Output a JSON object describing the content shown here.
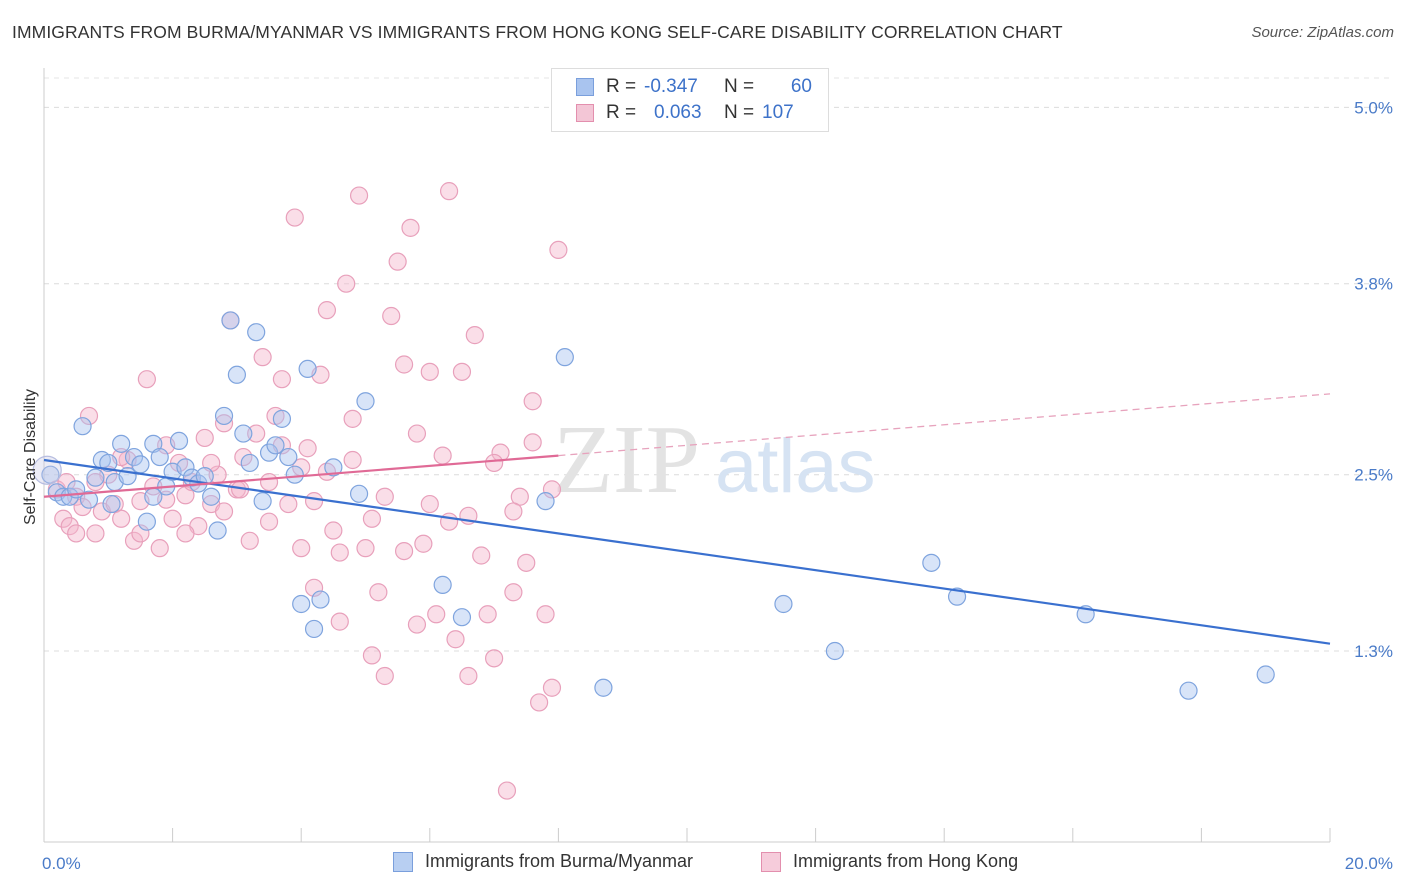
{
  "title": "IMMIGRANTS FROM BURMA/MYANMAR VS IMMIGRANTS FROM HONG KONG SELF-CARE DISABILITY CORRELATION CHART",
  "source": "Source: ZipAtlas.com",
  "watermark": {
    "zip": "ZIP",
    "atlas": "atlas"
  },
  "colors": {
    "blue": "#4a7bd0",
    "blue_fill": "#a9c4ef",
    "pink": "#e0709a",
    "pink_fill": "#f3b6cb",
    "tick": "#4a7bc8"
  },
  "legend": {
    "series1": {
      "r_label": "R =",
      "r_value": "-0.347",
      "n_label": "N =",
      "n_value": "60"
    },
    "series2": {
      "r_label": "R =",
      "r_value": "0.063",
      "n_label": "N =",
      "n_value": "107"
    }
  },
  "chart_data": {
    "type": "scatter",
    "title": "IMMIGRANTS FROM BURMA/MYANMAR VS IMMIGRANTS FROM HONG KONG SELF-CARE DISABILITY CORRELATION CHART",
    "xlabel": "",
    "ylabel": "Self-Care Disability",
    "xlim": [
      0,
      20
    ],
    "ylim": [
      0.0,
      5.2
    ],
    "x_tick_labels": [
      "0.0%",
      "20.0%"
    ],
    "y_ticks": [
      1.3,
      2.5,
      3.8,
      5.0
    ],
    "y_tick_labels": [
      "1.3%",
      "2.5%",
      "3.8%",
      "5.0%"
    ],
    "grid": true,
    "legend_position": "top-center",
    "series": [
      {
        "name": "Immigrants from Burma/Myanmar",
        "color": "#4a7bd0",
        "trend": {
          "x": [
            0,
            20
          ],
          "y": [
            2.6,
            1.35
          ]
        },
        "points": [
          [
            0.1,
            2.5
          ],
          [
            0.2,
            2.38
          ],
          [
            0.3,
            2.35
          ],
          [
            0.4,
            2.35
          ],
          [
            0.6,
            2.83
          ],
          [
            0.7,
            2.33
          ],
          [
            0.8,
            2.48
          ],
          [
            0.9,
            2.6
          ],
          [
            1.0,
            2.58
          ],
          [
            1.1,
            2.45
          ],
          [
            1.2,
            2.71
          ],
          [
            1.3,
            2.49
          ],
          [
            1.4,
            2.62
          ],
          [
            1.5,
            2.57
          ],
          [
            1.6,
            2.18
          ],
          [
            1.7,
            2.71
          ],
          [
            1.8,
            2.62
          ],
          [
            1.9,
            2.42
          ],
          [
            2.0,
            2.52
          ],
          [
            2.1,
            2.73
          ],
          [
            2.2,
            2.55
          ],
          [
            2.3,
            2.48
          ],
          [
            2.4,
            2.44
          ],
          [
            2.6,
            2.35
          ],
          [
            2.7,
            2.12
          ],
          [
            2.8,
            2.9
          ],
          [
            2.9,
            3.55
          ],
          [
            3.0,
            3.18
          ],
          [
            3.1,
            2.78
          ],
          [
            3.2,
            2.58
          ],
          [
            3.3,
            3.47
          ],
          [
            3.4,
            2.32
          ],
          [
            3.5,
            2.65
          ],
          [
            3.6,
            2.7
          ],
          [
            3.7,
            2.88
          ],
          [
            3.8,
            2.62
          ],
          [
            3.9,
            2.5
          ],
          [
            4.0,
            1.62
          ],
          [
            4.1,
            3.22
          ],
          [
            4.2,
            1.45
          ],
          [
            4.3,
            1.65
          ],
          [
            4.5,
            2.55
          ],
          [
            4.9,
            2.37
          ],
          [
            5.0,
            3.0
          ],
          [
            6.2,
            1.75
          ],
          [
            6.5,
            1.53
          ],
          [
            7.8,
            2.32
          ],
          [
            8.1,
            3.3
          ],
          [
            8.7,
            1.05
          ],
          [
            11.5,
            1.62
          ],
          [
            12.3,
            1.3
          ],
          [
            13.8,
            1.9
          ],
          [
            14.2,
            1.67
          ],
          [
            16.2,
            1.55
          ],
          [
            17.8,
            1.03
          ],
          [
            19.0,
            1.14
          ],
          [
            0.5,
            2.4
          ],
          [
            1.05,
            2.3
          ],
          [
            1.7,
            2.35
          ],
          [
            2.5,
            2.49
          ]
        ]
      },
      {
        "name": "Immigrants from Hong Kong",
        "color": "#e0709a",
        "trend": {
          "x": [
            0,
            20
          ],
          "y": [
            2.35,
            3.05
          ],
          "solid_until_x": 8.0
        },
        "points": [
          [
            0.2,
            2.4
          ],
          [
            0.3,
            2.2
          ],
          [
            0.35,
            2.45
          ],
          [
            0.4,
            2.15
          ],
          [
            0.5,
            2.35
          ],
          [
            0.6,
            2.28
          ],
          [
            0.7,
            2.9
          ],
          [
            0.8,
            2.1
          ],
          [
            0.9,
            2.25
          ],
          [
            1.0,
            2.5
          ],
          [
            1.1,
            2.3
          ],
          [
            1.2,
            2.2
          ],
          [
            1.3,
            2.6
          ],
          [
            1.4,
            2.05
          ],
          [
            1.5,
            2.32
          ],
          [
            1.6,
            3.15
          ],
          [
            1.7,
            2.42
          ],
          [
            1.8,
            2.0
          ],
          [
            1.9,
            2.7
          ],
          [
            2.0,
            2.2
          ],
          [
            2.1,
            2.58
          ],
          [
            2.2,
            2.36
          ],
          [
            2.3,
            2.45
          ],
          [
            2.4,
            2.15
          ],
          [
            2.5,
            2.75
          ],
          [
            2.6,
            2.3
          ],
          [
            2.7,
            2.5
          ],
          [
            2.8,
            2.25
          ],
          [
            2.9,
            3.55
          ],
          [
            3.0,
            2.4
          ],
          [
            3.1,
            2.62
          ],
          [
            3.2,
            2.05
          ],
          [
            3.3,
            2.78
          ],
          [
            3.4,
            3.3
          ],
          [
            3.5,
            2.45
          ],
          [
            3.6,
            2.9
          ],
          [
            3.7,
            3.15
          ],
          [
            3.8,
            2.3
          ],
          [
            3.9,
            4.25
          ],
          [
            4.0,
            2.55
          ],
          [
            4.1,
            2.68
          ],
          [
            4.2,
            2.32
          ],
          [
            4.3,
            3.18
          ],
          [
            4.4,
            3.62
          ],
          [
            4.5,
            2.12
          ],
          [
            4.6,
            1.5
          ],
          [
            4.7,
            3.8
          ],
          [
            4.8,
            2.6
          ],
          [
            4.9,
            4.4
          ],
          [
            5.0,
            2.0
          ],
          [
            5.1,
            1.27
          ],
          [
            5.2,
            1.7
          ],
          [
            5.3,
            1.13
          ],
          [
            5.4,
            3.58
          ],
          [
            5.5,
            3.95
          ],
          [
            5.6,
            1.98
          ],
          [
            5.7,
            4.18
          ],
          [
            5.8,
            2.78
          ],
          [
            5.9,
            2.03
          ],
          [
            6.0,
            3.2
          ],
          [
            6.1,
            1.55
          ],
          [
            6.2,
            2.63
          ],
          [
            6.3,
            4.43
          ],
          [
            6.4,
            1.38
          ],
          [
            6.5,
            3.2
          ],
          [
            6.6,
            2.22
          ],
          [
            6.7,
            3.45
          ],
          [
            6.8,
            1.95
          ],
          [
            6.9,
            1.55
          ],
          [
            7.0,
            1.25
          ],
          [
            7.1,
            2.65
          ],
          [
            7.2,
            0.35
          ],
          [
            7.3,
            1.7
          ],
          [
            7.4,
            2.35
          ],
          [
            7.5,
            1.9
          ],
          [
            7.6,
            3.0
          ],
          [
            7.7,
            0.95
          ],
          [
            7.8,
            1.55
          ],
          [
            7.9,
            1.05
          ],
          [
            8.0,
            4.03
          ],
          [
            0.5,
            2.1
          ],
          [
            0.8,
            2.45
          ],
          [
            1.2,
            2.62
          ],
          [
            1.5,
            2.1
          ],
          [
            1.9,
            2.33
          ],
          [
            2.2,
            2.1
          ],
          [
            2.6,
            2.58
          ],
          [
            2.8,
            2.85
          ],
          [
            3.05,
            2.4
          ],
          [
            3.5,
            2.18
          ],
          [
            3.7,
            2.7
          ],
          [
            4.0,
            2.0
          ],
          [
            4.2,
            1.73
          ],
          [
            4.4,
            2.52
          ],
          [
            4.6,
            1.97
          ],
          [
            4.8,
            2.88
          ],
          [
            5.1,
            2.2
          ],
          [
            5.3,
            2.35
          ],
          [
            5.6,
            3.25
          ],
          [
            5.8,
            1.48
          ],
          [
            6.0,
            2.3
          ],
          [
            6.3,
            2.18
          ],
          [
            6.6,
            1.13
          ],
          [
            7.0,
            2.58
          ],
          [
            7.3,
            2.25
          ],
          [
            7.6,
            2.72
          ],
          [
            7.9,
            2.4
          ]
        ]
      }
    ]
  }
}
